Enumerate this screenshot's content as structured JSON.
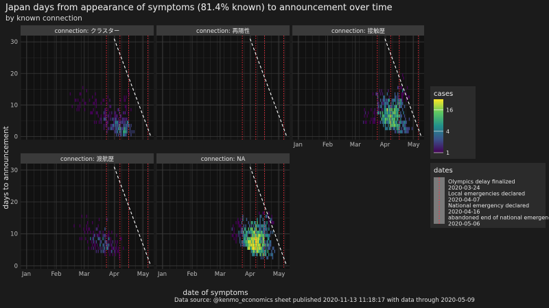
{
  "chart_data": {
    "type": "heatmap",
    "title": "Japan days from appearance of symptoms (81.4% known) to announcement over time",
    "subtitle": "by known connection",
    "xlabel": "date of symptoms",
    "ylabel": "days to announcement",
    "x_ticks": [
      "Jan",
      "Feb",
      "Mar",
      "Apr",
      "May"
    ],
    "x_tick_dates": [
      "2020-01-01",
      "2020-02-01",
      "2020-03-01",
      "2020-04-01",
      "2020-05-01"
    ],
    "xlim": [
      "2019-12-26",
      "2020-05-12"
    ],
    "y_ticks": [
      "0",
      "10",
      "20",
      "30"
    ],
    "ylim": [
      -1,
      32
    ],
    "grid": true,
    "announcement_limit": {
      "start": "2020-04-01",
      "days_at_start": 31,
      "end": "2020-05-09"
    },
    "panels": [
      {
        "strip": "connection: クラスター",
        "density": [
          {
            "date": "2020-02-25",
            "days": 10,
            "cases": 2
          },
          {
            "date": "2020-03-10",
            "days": 8,
            "cases": 2
          },
          {
            "date": "2020-03-20",
            "days": 5,
            "cases": 3
          },
          {
            "date": "2020-03-28",
            "days": 4,
            "cases": 5
          },
          {
            "date": "2020-04-05",
            "days": 3,
            "cases": 6
          },
          {
            "date": "2020-04-10",
            "days": 2,
            "cases": 8
          },
          {
            "date": "2020-04-12",
            "days": 7,
            "cases": 3
          }
        ]
      },
      {
        "strip": "connection: 再陽性",
        "density": []
      },
      {
        "strip": "connection: 接触歴",
        "density": [
          {
            "date": "2020-03-15",
            "days": 6,
            "cases": 3
          },
          {
            "date": "2020-03-28",
            "days": 9,
            "cases": 5
          },
          {
            "date": "2020-04-03",
            "days": 6,
            "cases": 12
          },
          {
            "date": "2020-04-08",
            "days": 4,
            "cases": 16
          },
          {
            "date": "2020-04-12",
            "days": 8,
            "cases": 10
          },
          {
            "date": "2020-04-18",
            "days": 3,
            "cases": 8
          },
          {
            "date": "2020-04-22",
            "days": 13,
            "cases": 4
          }
        ]
      },
      {
        "strip": "connection: 渡航歴",
        "density": [
          {
            "date": "2020-03-12",
            "days": 7,
            "cases": 4
          },
          {
            "date": "2020-03-20",
            "days": 6,
            "cases": 6
          },
          {
            "date": "2020-03-25",
            "days": 5,
            "cases": 4
          },
          {
            "date": "2020-03-02",
            "days": 10,
            "cases": 2
          },
          {
            "date": "2020-04-02",
            "days": 4,
            "cases": 2
          }
        ]
      },
      {
        "strip": "connection: NA",
        "density": [
          {
            "date": "2020-03-20",
            "days": 9,
            "cases": 4
          },
          {
            "date": "2020-03-30",
            "days": 8,
            "cases": 10
          },
          {
            "date": "2020-04-04",
            "days": 7,
            "cases": 22
          },
          {
            "date": "2020-04-08",
            "days": 5,
            "cases": 18
          },
          {
            "date": "2020-04-12",
            "days": 9,
            "cases": 12
          },
          {
            "date": "2020-04-16",
            "days": 4,
            "cases": 10
          },
          {
            "date": "2020-04-22",
            "days": 14,
            "cases": 3
          }
        ]
      }
    ],
    "colorbar": {
      "title": "cases",
      "ticks": [
        1,
        4,
        16
      ],
      "scale": "log",
      "max": 32,
      "colors": [
        "#440154",
        "#3b528b",
        "#21908c",
        "#5dc863",
        "#fde725"
      ]
    },
    "dates_legend": {
      "title": "dates",
      "entries": [
        {
          "label": "Olympics delay finalized",
          "date": "2020-03-24"
        },
        {
          "label": "Local emergencies declared",
          "date": "2020-04-07"
        },
        {
          "label": "National emergency declared",
          "date": "2020-04-16"
        },
        {
          "label": "abandoned end of national emergency",
          "date": "2020-05-06"
        }
      ],
      "line_color": "#ff2d3d"
    },
    "caption": "Data source: @kenmo_economics sheet published 2020-11-13 11:18:17 with data through 2020-05-09"
  }
}
